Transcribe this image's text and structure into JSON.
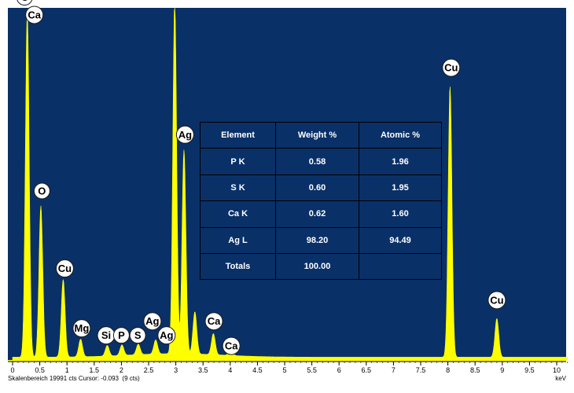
{
  "chart_data": {
    "type": "line",
    "x_unit": "keV",
    "xlim": [
      0,
      10.2
    ],
    "x_ticks": [
      "0",
      "0.5",
      "1",
      "1.5",
      "2",
      "2.5",
      "3",
      "3.5",
      "4",
      "4.5",
      "5",
      "5.5",
      "6",
      "6.5",
      "7",
      "7.5",
      "8",
      "8.5",
      "9",
      "9.5",
      "10"
    ],
    "series_color": "#ffff00",
    "background_color": "#0a3068",
    "peaks": [
      {
        "x": 0.27,
        "y": 0.98
      },
      {
        "x": 0.52,
        "y": 0.43
      },
      {
        "x": 0.93,
        "y": 0.22
      },
      {
        "x": 1.25,
        "y": 0.05
      },
      {
        "x": 1.74,
        "y": 0.03
      },
      {
        "x": 2.01,
        "y": 0.03
      },
      {
        "x": 2.31,
        "y": 0.03
      },
      {
        "x": 2.63,
        "y": 0.04
      },
      {
        "x": 2.98,
        "y": 1.0
      },
      {
        "x": 3.15,
        "y": 0.58
      },
      {
        "x": 3.35,
        "y": 0.12
      },
      {
        "x": 3.69,
        "y": 0.06
      },
      {
        "x": 4.01,
        "y": 0.02
      },
      {
        "x": 8.04,
        "y": 0.77
      },
      {
        "x": 8.9,
        "y": 0.11
      }
    ],
    "peak_labels": [
      {
        "text": "C",
        "x": 0.22,
        "y": 1.03
      },
      {
        "text": "Ca",
        "x": 0.4,
        "y": 0.98
      },
      {
        "text": "O",
        "x": 0.54,
        "y": 0.48
      },
      {
        "text": "Cu",
        "x": 0.96,
        "y": 0.26
      },
      {
        "text": "Mg",
        "x": 1.27,
        "y": 0.09
      },
      {
        "text": "Si",
        "x": 1.72,
        "y": 0.07
      },
      {
        "text": "P",
        "x": 2.0,
        "y": 0.07
      },
      {
        "text": "S",
        "x": 2.3,
        "y": 0.07
      },
      {
        "text": "Ag",
        "x": 2.57,
        "y": 0.11
      },
      {
        "text": "Ag",
        "x": 2.83,
        "y": 0.07
      },
      {
        "text": "Ag",
        "x": 2.99,
        "y": 1.05
      },
      {
        "text": "Ag",
        "x": 3.17,
        "y": 0.64
      },
      {
        "text": "Ca",
        "x": 3.7,
        "y": 0.11
      },
      {
        "text": "Ca",
        "x": 4.02,
        "y": 0.04
      },
      {
        "text": "Cu",
        "x": 8.06,
        "y": 0.83
      },
      {
        "text": "Cu",
        "x": 8.9,
        "y": 0.17
      }
    ],
    "table": {
      "headers": [
        "Element",
        "Weight %",
        "Atomic %"
      ],
      "rows": [
        [
          "P K",
          "0.58",
          "1.96"
        ],
        [
          "S K",
          "0.60",
          "1.95"
        ],
        [
          "Ca K",
          "0.62",
          "1.60"
        ],
        [
          "Ag L",
          "98.20",
          "94.49"
        ],
        [
          "Totals",
          "100.00",
          ""
        ]
      ]
    }
  },
  "status": {
    "text": "Skalenbereich 19991 cts Cursor: -0.093  (9 cts)",
    "unit": "keV"
  }
}
